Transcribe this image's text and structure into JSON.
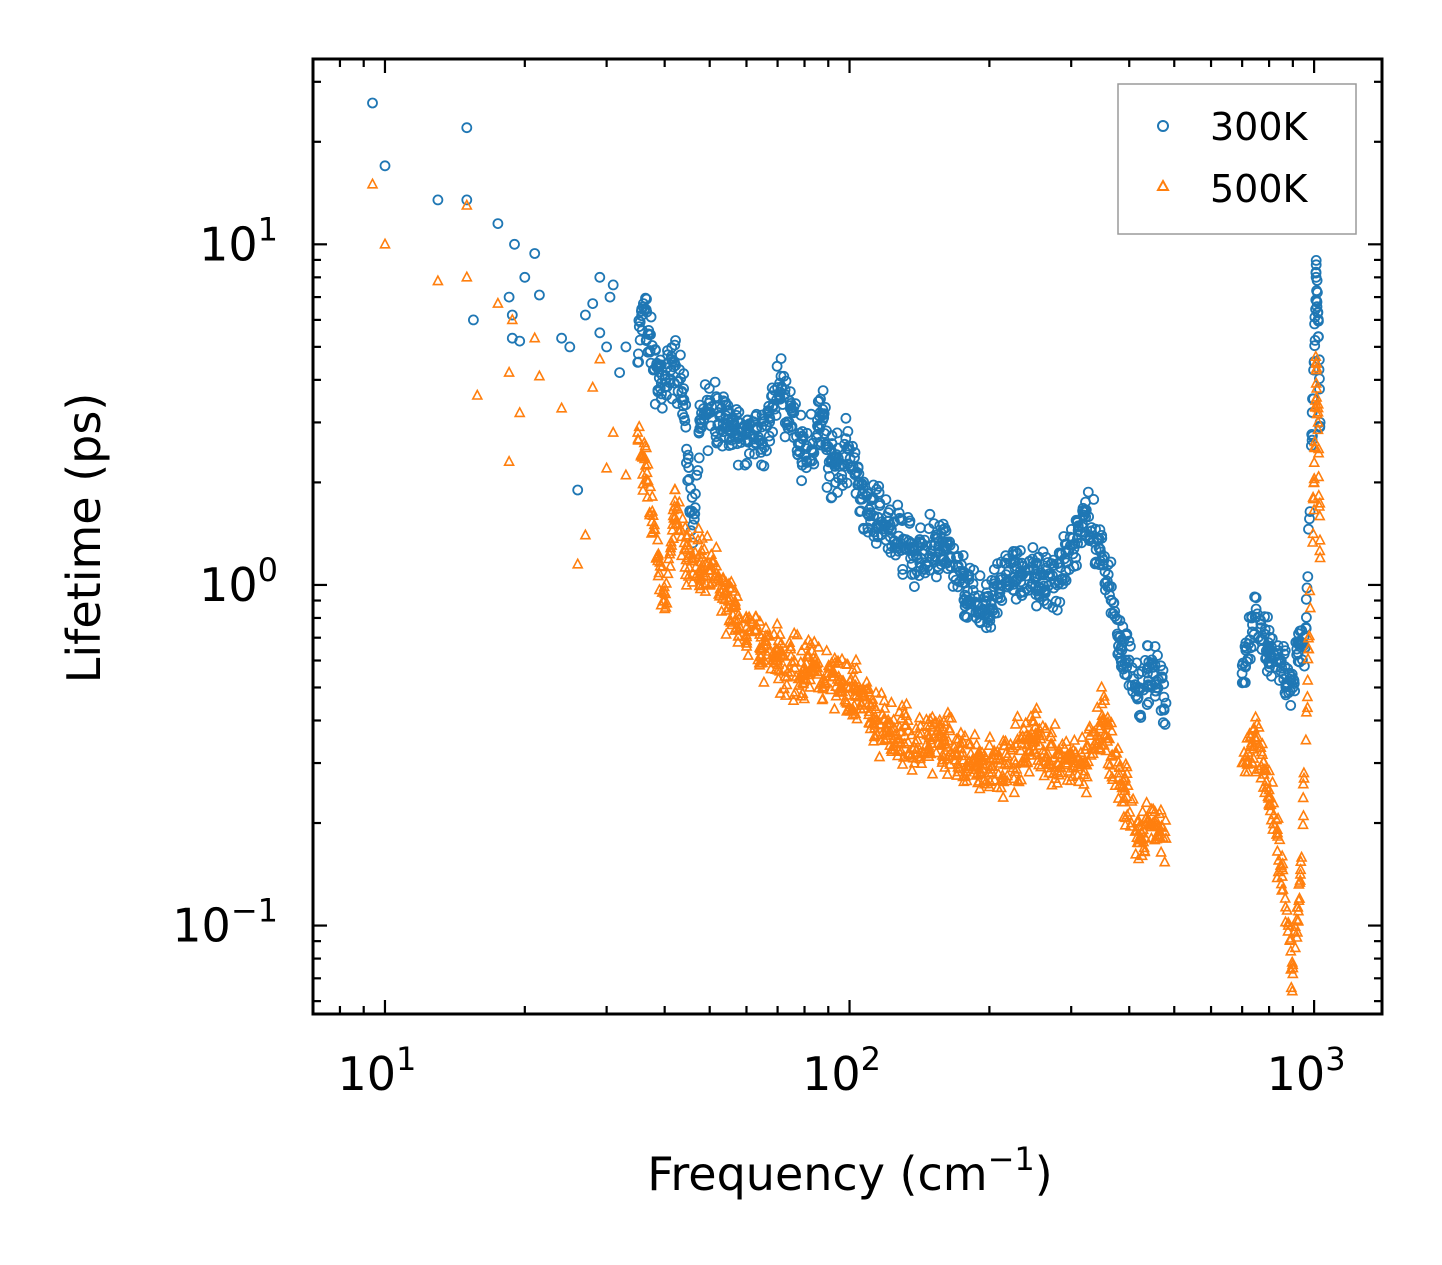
{
  "chart_data": {
    "type": "scatter",
    "xscale": "log",
    "yscale": "log",
    "xlabel": "Frequency (cm",
    "xlabel_sup": "−1",
    "xlabel_tail": ")",
    "ylabel": "Lifetime (ps)",
    "xlim": [
      7,
      1400
    ],
    "ylim": [
      0.055,
      35
    ],
    "x_ticks": [
      {
        "value": 10,
        "base": "10",
        "exp": "1"
      },
      {
        "value": 100,
        "base": "10",
        "exp": "2"
      },
      {
        "value": 1000,
        "base": "10",
        "exp": "3"
      }
    ],
    "y_ticks": [
      {
        "value": 0.1,
        "base": "10",
        "exp": "−1"
      },
      {
        "value": 1,
        "base": "10",
        "exp": "0"
      },
      {
        "value": 10,
        "base": "10",
        "exp": "1"
      }
    ],
    "legend_position": "top-right",
    "series": [
      {
        "name": "300K",
        "marker": "circle",
        "color": "#1f77b4",
        "points": [
          [
            9.4,
            26
          ],
          [
            10,
            17
          ],
          [
            13,
            13.5
          ],
          [
            15,
            22
          ],
          [
            15,
            13.5
          ],
          [
            15.5,
            6
          ],
          [
            17.5,
            11.5
          ],
          [
            18.5,
            7
          ],
          [
            18.8,
            6.2
          ],
          [
            18.8,
            5.3
          ],
          [
            19,
            10
          ],
          [
            19.5,
            5.2
          ],
          [
            20,
            8
          ],
          [
            21,
            9.4
          ],
          [
            21.5,
            7.1
          ],
          [
            24,
            5.3
          ],
          [
            25,
            5
          ],
          [
            26,
            1.9
          ],
          [
            27,
            6.2
          ],
          [
            28,
            6.7
          ],
          [
            29,
            8
          ],
          [
            29,
            5.5
          ],
          [
            30,
            5
          ],
          [
            30.5,
            7
          ],
          [
            31,
            7.6
          ],
          [
            32,
            4.2
          ],
          [
            33,
            5
          ],
          [
            35,
            4.5
          ],
          [
            36,
            6.7
          ],
          [
            38,
            4.3
          ],
          [
            40,
            3.8
          ],
          [
            42,
            4.5
          ],
          [
            44,
            3.5
          ],
          [
            46,
            1.5
          ],
          [
            48,
            3.2
          ],
          [
            55,
            3.0
          ],
          [
            60,
            2.8
          ],
          [
            65,
            2.6
          ],
          [
            70,
            3.8
          ],
          [
            75,
            3.3
          ],
          [
            80,
            2.4
          ],
          [
            88,
            3.1
          ],
          [
            90,
            2.2
          ],
          [
            100,
            2.5
          ],
          [
            110,
            1.6
          ],
          [
            120,
            1.5
          ],
          [
            140,
            1.2
          ],
          [
            160,
            1.3
          ],
          [
            180,
            0.9
          ],
          [
            200,
            0.85
          ],
          [
            220,
            1.1
          ],
          [
            250,
            1.05
          ],
          [
            280,
            1.0
          ],
          [
            320,
            1.6
          ],
          [
            350,
            1.2
          ],
          [
            380,
            0.7
          ],
          [
            420,
            0.5
          ],
          [
            450,
            0.55
          ],
          [
            480,
            0.45
          ],
          [
            700,
            0.55
          ],
          [
            750,
            0.85
          ],
          [
            800,
            0.65
          ],
          [
            850,
            0.6
          ],
          [
            900,
            0.5
          ],
          [
            960,
            0.75
          ],
          [
            1000,
            4.5
          ],
          [
            1010,
            8
          ],
          [
            1020,
            6
          ],
          [
            1030,
            3
          ]
        ]
      },
      {
        "name": "500K",
        "marker": "triangle",
        "color": "#ff7f0e",
        "points": [
          [
            9.4,
            15
          ],
          [
            10,
            10
          ],
          [
            13,
            7.8
          ],
          [
            15,
            13
          ],
          [
            15,
            8
          ],
          [
            15.8,
            3.6
          ],
          [
            17.5,
            6.7
          ],
          [
            18.5,
            4.2
          ],
          [
            18.8,
            6.0
          ],
          [
            18.5,
            2.3
          ],
          [
            19.5,
            3.2
          ],
          [
            21,
            5.3
          ],
          [
            21.5,
            4.1
          ],
          [
            24,
            3.3
          ],
          [
            26,
            1.15
          ],
          [
            27,
            1.4
          ],
          [
            28,
            3.8
          ],
          [
            29,
            4.6
          ],
          [
            30,
            2.2
          ],
          [
            31,
            2.8
          ],
          [
            33,
            2.1
          ],
          [
            35,
            2.8
          ],
          [
            38,
            1.5
          ],
          [
            40,
            0.85
          ],
          [
            42,
            1.7
          ],
          [
            45,
            1.2
          ],
          [
            50,
            1.1
          ],
          [
            55,
            0.9
          ],
          [
            60,
            0.75
          ],
          [
            65,
            0.65
          ],
          [
            70,
            0.6
          ],
          [
            80,
            0.55
          ],
          [
            90,
            0.55
          ],
          [
            100,
            0.5
          ],
          [
            110,
            0.45
          ],
          [
            120,
            0.38
          ],
          [
            140,
            0.35
          ],
          [
            160,
            0.35
          ],
          [
            180,
            0.3
          ],
          [
            200,
            0.28
          ],
          [
            220,
            0.3
          ],
          [
            250,
            0.35
          ],
          [
            280,
            0.3
          ],
          [
            320,
            0.3
          ],
          [
            350,
            0.4
          ],
          [
            380,
            0.28
          ],
          [
            420,
            0.18
          ],
          [
            450,
            0.2
          ],
          [
            480,
            0.18
          ],
          [
            700,
            0.3
          ],
          [
            750,
            0.35
          ],
          [
            800,
            0.25
          ],
          [
            850,
            0.15
          ],
          [
            880,
            0.1
          ],
          [
            900,
            0.075
          ],
          [
            930,
            0.12
          ],
          [
            960,
            0.35
          ],
          [
            1000,
            2.0
          ],
          [
            1010,
            4.5
          ],
          [
            1020,
            3.0
          ],
          [
            1030,
            1.2
          ]
        ]
      }
    ]
  }
}
